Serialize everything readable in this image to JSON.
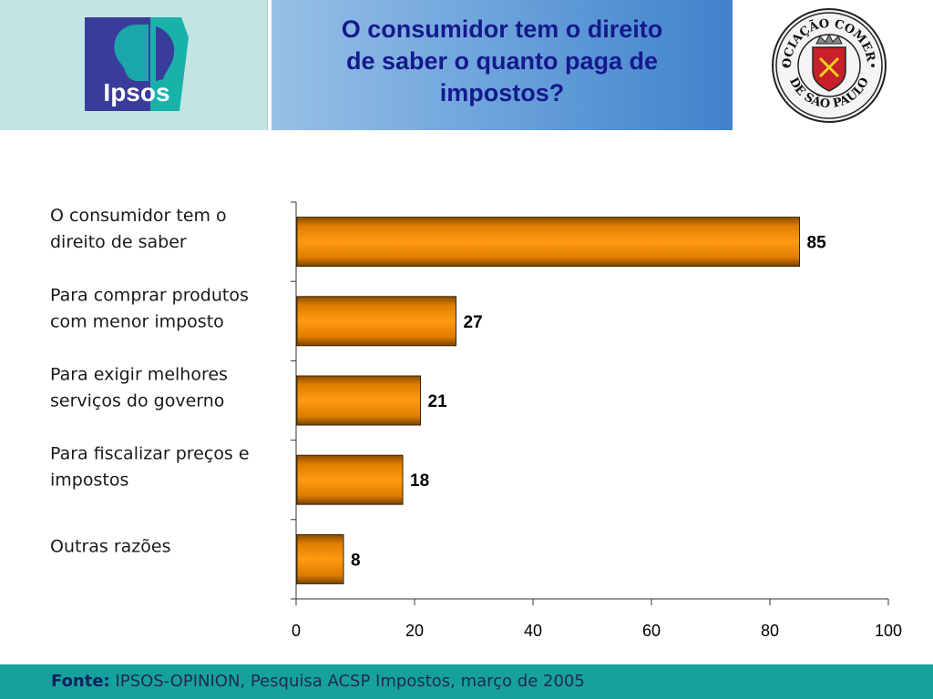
{
  "header": {
    "title_lines": [
      "O consumidor tem o direito",
      "de saber o quanto paga de",
      "impostos?"
    ],
    "brand_left": "Ipsos",
    "seal_text_top": "ASSOCIAÇÃO COMERCIAL",
    "seal_text_bottom": "DE SÃO PAULO"
  },
  "chart_data": {
    "type": "bar",
    "orientation": "horizontal",
    "categories": [
      [
        "O consumidor tem o",
        "direito de saber"
      ],
      [
        "Para comprar produtos",
        "com menor imposto"
      ],
      [
        "Para exigir melhores",
        "serviços do governo"
      ],
      [
        "Para fiscalizar preços e",
        "impostos"
      ],
      [
        "Outras razões"
      ]
    ],
    "values": [
      85,
      27,
      21,
      18,
      8
    ],
    "data_labels": [
      "85",
      "27",
      "21",
      "18",
      "8"
    ],
    "xlim": [
      0,
      100
    ],
    "xticks": [
      0,
      20,
      40,
      60,
      80,
      100
    ],
    "xtick_labels": [
      "0",
      "20",
      "40",
      "60",
      "80",
      "100"
    ],
    "grid": false,
    "bar_color": "#ff8c00"
  },
  "footer": {
    "source_label": "Fonte:",
    "source_text": " IPSOS-OPINION, Pesquisa ACSP Impostos, março de 2005"
  },
  "colors": {
    "title": "#16188d",
    "ipsos_blue": "#3a3c9c",
    "ipsos_teal": "#18b2ab",
    "footer_bg": "#17a19d",
    "seal_red": "#c8202a"
  }
}
